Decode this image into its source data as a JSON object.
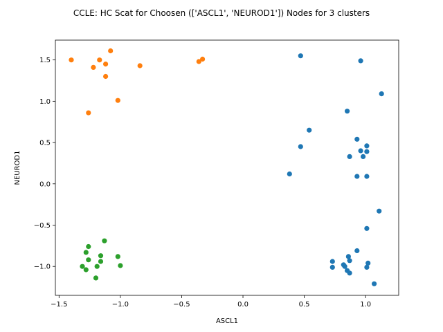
{
  "chart_data": {
    "type": "scatter",
    "title": "CCLE: HC Scat for Choosen (['ASCL1', 'NEUROD1']) Nodes for 3 clusters",
    "xlabel": "ASCL1",
    "ylabel": "NEUROD1",
    "xlim": [
      -1.53,
      1.27
    ],
    "ylim": [
      -1.35,
      1.74
    ],
    "xticks": [
      -1.5,
      -1.0,
      -0.5,
      0.0,
      0.5,
      1.0
    ],
    "xtick_labels": [
      "−1.5",
      "−1.0",
      "−0.5",
      "0.0",
      "0.5",
      "1.0"
    ],
    "yticks": [
      -1.0,
      -0.5,
      0.0,
      0.5,
      1.0,
      1.5
    ],
    "ytick_labels": [
      "−1.0",
      "−0.5",
      "0.0",
      "0.5",
      "1.0",
      "1.5"
    ],
    "grid": false,
    "legend": false,
    "series": [
      {
        "color": "#1f77b4",
        "points": [
          [
            0.47,
            1.55
          ],
          [
            0.96,
            1.49
          ],
          [
            1.13,
            1.09
          ],
          [
            0.85,
            0.88
          ],
          [
            0.54,
            0.65
          ],
          [
            0.93,
            0.54
          ],
          [
            0.47,
            0.45
          ],
          [
            1.01,
            0.46
          ],
          [
            0.96,
            0.4
          ],
          [
            1.01,
            0.39
          ],
          [
            0.98,
            0.33
          ],
          [
            0.87,
            0.33
          ],
          [
            0.38,
            0.12
          ],
          [
            0.93,
            0.09
          ],
          [
            1.01,
            0.09
          ],
          [
            1.11,
            -0.33
          ],
          [
            1.01,
            -0.54
          ],
          [
            0.93,
            -0.81
          ],
          [
            0.86,
            -0.88
          ],
          [
            0.73,
            -0.94
          ],
          [
            0.87,
            -0.93
          ],
          [
            1.02,
            -0.96
          ],
          [
            0.82,
            -0.98
          ],
          [
            0.83,
            -1.0
          ],
          [
            0.73,
            -1.01
          ],
          [
            1.01,
            -1.01
          ],
          [
            0.85,
            -1.05
          ],
          [
            0.87,
            -1.08
          ],
          [
            1.07,
            -1.21
          ]
        ]
      },
      {
        "color": "#ff7f0e",
        "points": [
          [
            -1.4,
            1.5
          ],
          [
            -1.08,
            1.61
          ],
          [
            -1.17,
            1.5
          ],
          [
            -1.22,
            1.41
          ],
          [
            -1.12,
            1.45
          ],
          [
            -0.84,
            1.43
          ],
          [
            -0.36,
            1.48
          ],
          [
            -0.33,
            1.51
          ],
          [
            -1.12,
            1.3
          ],
          [
            -1.02,
            1.01
          ],
          [
            -1.26,
            0.86
          ]
        ]
      },
      {
        "color": "#2ca02c",
        "points": [
          [
            -1.13,
            -0.69
          ],
          [
            -1.26,
            -0.76
          ],
          [
            -1.28,
            -0.83
          ],
          [
            -1.16,
            -0.87
          ],
          [
            -1.02,
            -0.88
          ],
          [
            -1.26,
            -0.92
          ],
          [
            -1.16,
            -0.94
          ],
          [
            -1.0,
            -0.99
          ],
          [
            -1.31,
            -1.0
          ],
          [
            -1.19,
            -1.0
          ],
          [
            -1.28,
            -1.04
          ],
          [
            -1.2,
            -1.14
          ]
        ]
      }
    ]
  }
}
